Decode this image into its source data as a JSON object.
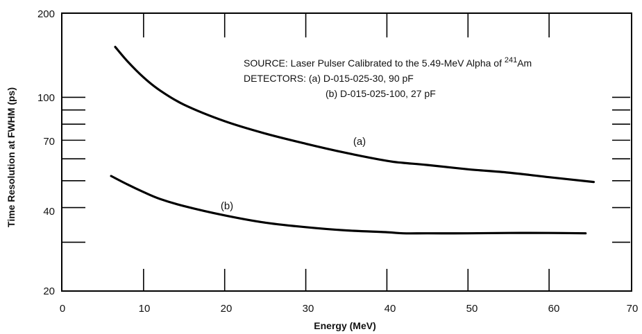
{
  "chart_data": {
    "type": "line",
    "xlabel": "Energy (MeV)",
    "ylabel": "Time Resolution at FWHM (ps)",
    "xlim": [
      0,
      70
    ],
    "ylim": [
      20,
      200
    ],
    "y_scale": "log",
    "grid": false,
    "x_ticks": [
      "0",
      "10",
      "20",
      "30",
      "40",
      "50",
      "60",
      "70"
    ],
    "y_ticks": [
      "20",
      "40",
      "70",
      "100",
      "200"
    ],
    "annotation": {
      "source_prefix": "SOURCE: Laser Pulser Calibrated to the 5.49-MeV Alpha of ",
      "source_isotope_mass": "241",
      "source_isotope": "Am",
      "detectors_a": "DETECTORS: (a) D-015-025-30, 90 pF",
      "detectors_b": "(b) D-015-025-100, 27 pF"
    },
    "series": [
      {
        "name": "(a)",
        "x": [
          6.5,
          8,
          10,
          12,
          15,
          20,
          25,
          30,
          35,
          40,
          42,
          45,
          50,
          55,
          60,
          65.5
        ],
        "y": [
          152,
          135,
          118,
          106,
          94,
          82,
          74,
          68,
          63,
          59,
          58,
          57,
          55,
          53.5,
          51.5,
          49.5
        ]
      },
      {
        "name": "(b)",
        "x": [
          6,
          8,
          10,
          12,
          15,
          20,
          25,
          30,
          35,
          40,
          42,
          45,
          50,
          55,
          60,
          64.5
        ],
        "y": [
          52,
          48.5,
          45.5,
          43,
          40.5,
          37.5,
          35.3,
          34,
          33.1,
          32.6,
          32.3,
          32.3,
          32.3,
          32.4,
          32.4,
          32.3
        ]
      }
    ]
  }
}
